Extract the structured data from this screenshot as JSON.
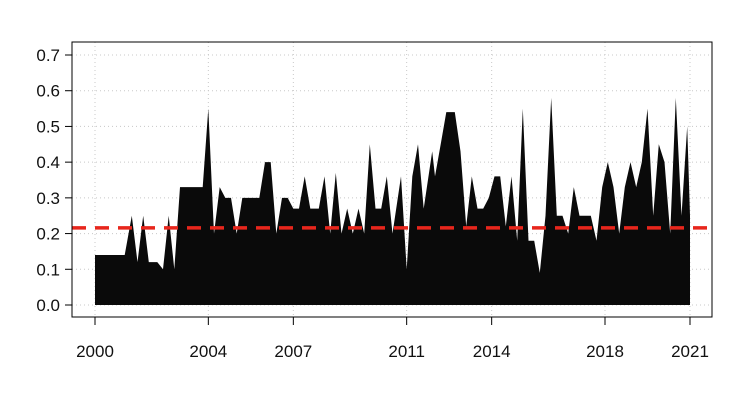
{
  "chart_data": {
    "type": "area",
    "title": "",
    "xlabel": "",
    "ylabel": "",
    "xlim": [
      2000,
      2021
    ],
    "ylim": [
      0,
      0.7
    ],
    "x_ticks": [
      "2000",
      "2004",
      "2007",
      "2011",
      "2014",
      "2018",
      "2021"
    ],
    "y_ticks": [
      "0.0",
      "0.1",
      "0.2",
      "0.3",
      "0.4",
      "0.5",
      "0.6",
      "0.7"
    ],
    "grid": true,
    "series": [
      {
        "fill_color": "#0a0a0a",
        "points": [
          [
            2000.0,
            0.14
          ],
          [
            2001.05,
            0.14
          ],
          [
            2001.3,
            0.25
          ],
          [
            2001.5,
            0.12
          ],
          [
            2001.7,
            0.25
          ],
          [
            2001.9,
            0.12
          ],
          [
            2002.2,
            0.12
          ],
          [
            2002.4,
            0.1
          ],
          [
            2002.6,
            0.25
          ],
          [
            2002.8,
            0.1
          ],
          [
            2003.0,
            0.33
          ],
          [
            2003.8,
            0.33
          ],
          [
            2004.0,
            0.55
          ],
          [
            2004.2,
            0.2
          ],
          [
            2004.4,
            0.33
          ],
          [
            2004.6,
            0.3
          ],
          [
            2004.8,
            0.3
          ],
          [
            2005.0,
            0.2
          ],
          [
            2005.2,
            0.3
          ],
          [
            2005.6,
            0.3
          ],
          [
            2005.8,
            0.3
          ],
          [
            2006.0,
            0.4
          ],
          [
            2006.2,
            0.4
          ],
          [
            2006.4,
            0.2
          ],
          [
            2006.6,
            0.3
          ],
          [
            2006.8,
            0.3
          ],
          [
            2007.0,
            0.27
          ],
          [
            2007.2,
            0.27
          ],
          [
            2007.4,
            0.36
          ],
          [
            2007.6,
            0.27
          ],
          [
            2007.9,
            0.27
          ],
          [
            2008.1,
            0.36
          ],
          [
            2008.3,
            0.2
          ],
          [
            2008.5,
            0.37
          ],
          [
            2008.7,
            0.2
          ],
          [
            2008.9,
            0.27
          ],
          [
            2009.1,
            0.2
          ],
          [
            2009.3,
            0.27
          ],
          [
            2009.5,
            0.2
          ],
          [
            2009.7,
            0.45
          ],
          [
            2009.9,
            0.27
          ],
          [
            2010.1,
            0.27
          ],
          [
            2010.3,
            0.36
          ],
          [
            2010.5,
            0.2
          ],
          [
            2010.8,
            0.36
          ],
          [
            2011.0,
            0.1
          ],
          [
            2011.2,
            0.36
          ],
          [
            2011.4,
            0.45
          ],
          [
            2011.6,
            0.27
          ],
          [
            2011.9,
            0.43
          ],
          [
            2012.0,
            0.36
          ],
          [
            2012.2,
            0.45
          ],
          [
            2012.4,
            0.54
          ],
          [
            2012.7,
            0.54
          ],
          [
            2012.9,
            0.43
          ],
          [
            2013.1,
            0.22
          ],
          [
            2013.3,
            0.36
          ],
          [
            2013.5,
            0.27
          ],
          [
            2013.7,
            0.27
          ],
          [
            2013.9,
            0.3
          ],
          [
            2014.1,
            0.36
          ],
          [
            2014.3,
            0.36
          ],
          [
            2014.5,
            0.22
          ],
          [
            2014.7,
            0.36
          ],
          [
            2014.9,
            0.18
          ],
          [
            2015.1,
            0.55
          ],
          [
            2015.3,
            0.18
          ],
          [
            2015.5,
            0.18
          ],
          [
            2015.7,
            0.09
          ],
          [
            2015.9,
            0.25
          ],
          [
            2016.1,
            0.58
          ],
          [
            2016.3,
            0.25
          ],
          [
            2016.5,
            0.25
          ],
          [
            2016.7,
            0.2
          ],
          [
            2016.9,
            0.33
          ],
          [
            2017.1,
            0.25
          ],
          [
            2017.3,
            0.25
          ],
          [
            2017.5,
            0.25
          ],
          [
            2017.7,
            0.18
          ],
          [
            2017.9,
            0.33
          ],
          [
            2018.1,
            0.4
          ],
          [
            2018.3,
            0.33
          ],
          [
            2018.5,
            0.2
          ],
          [
            2018.7,
            0.33
          ],
          [
            2018.9,
            0.4
          ],
          [
            2019.1,
            0.33
          ],
          [
            2019.3,
            0.4
          ],
          [
            2019.5,
            0.55
          ],
          [
            2019.7,
            0.25
          ],
          [
            2019.9,
            0.45
          ],
          [
            2020.1,
            0.4
          ],
          [
            2020.3,
            0.2
          ],
          [
            2020.5,
            0.58
          ],
          [
            2020.7,
            0.25
          ],
          [
            2020.9,
            0.5
          ],
          [
            2021.0,
            0.25
          ]
        ]
      }
    ],
    "reference_line": {
      "y": 0.216,
      "color": "#e8261c",
      "style": "dashed"
    }
  }
}
